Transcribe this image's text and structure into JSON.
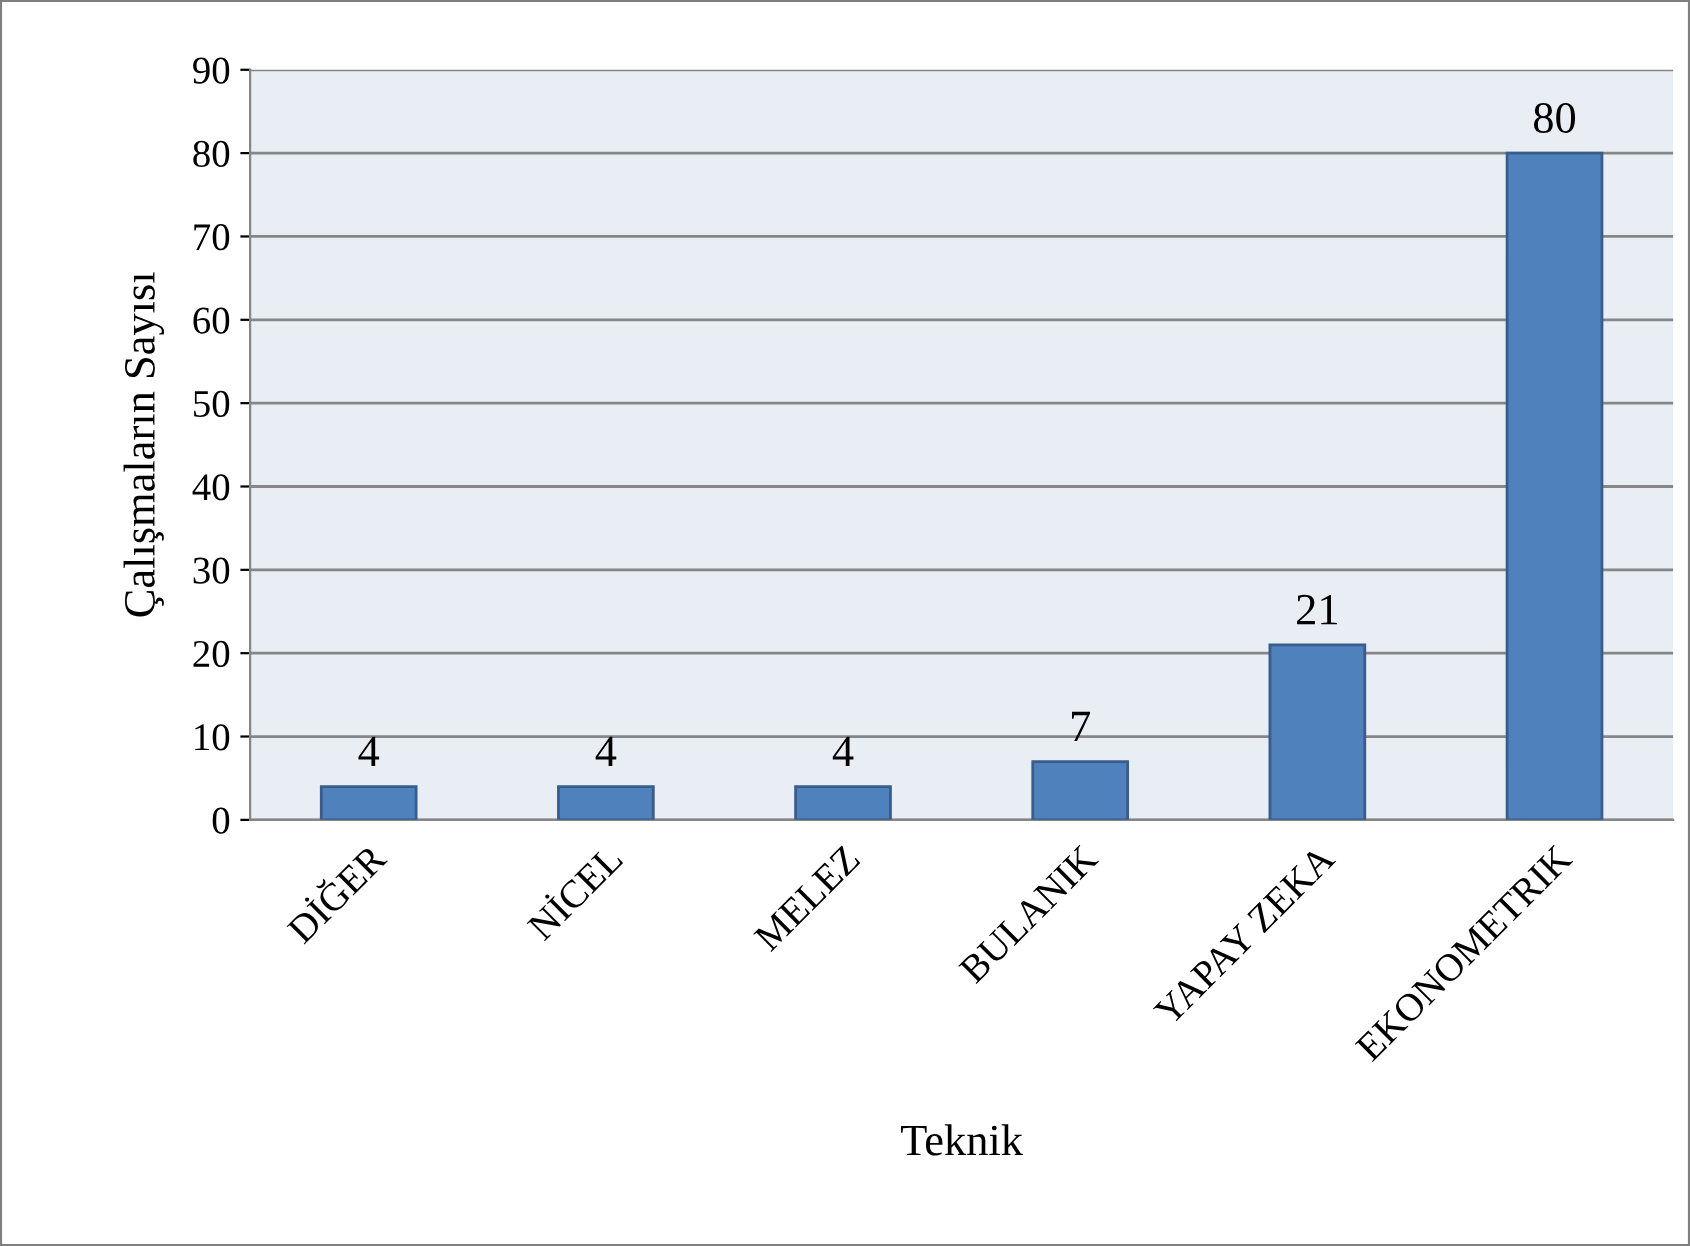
{
  "chart_data": {
    "type": "bar",
    "xlabel": "Teknik",
    "ylabel": "Çalışmaların Sayısı",
    "categories": [
      "DİĞER",
      "NİCEL",
      "MELEZ",
      "BULANIK",
      "YAPAY ZEKA",
      "EKONOMETRIK"
    ],
    "values": [
      4,
      4,
      4,
      7,
      21,
      80
    ],
    "color": "#4f81bd",
    "ylim": [
      0,
      90
    ],
    "yticks": [
      0,
      10,
      20,
      30,
      40,
      50,
      60,
      70,
      80,
      90
    ],
    "grid": "y",
    "data_labels": true
  }
}
